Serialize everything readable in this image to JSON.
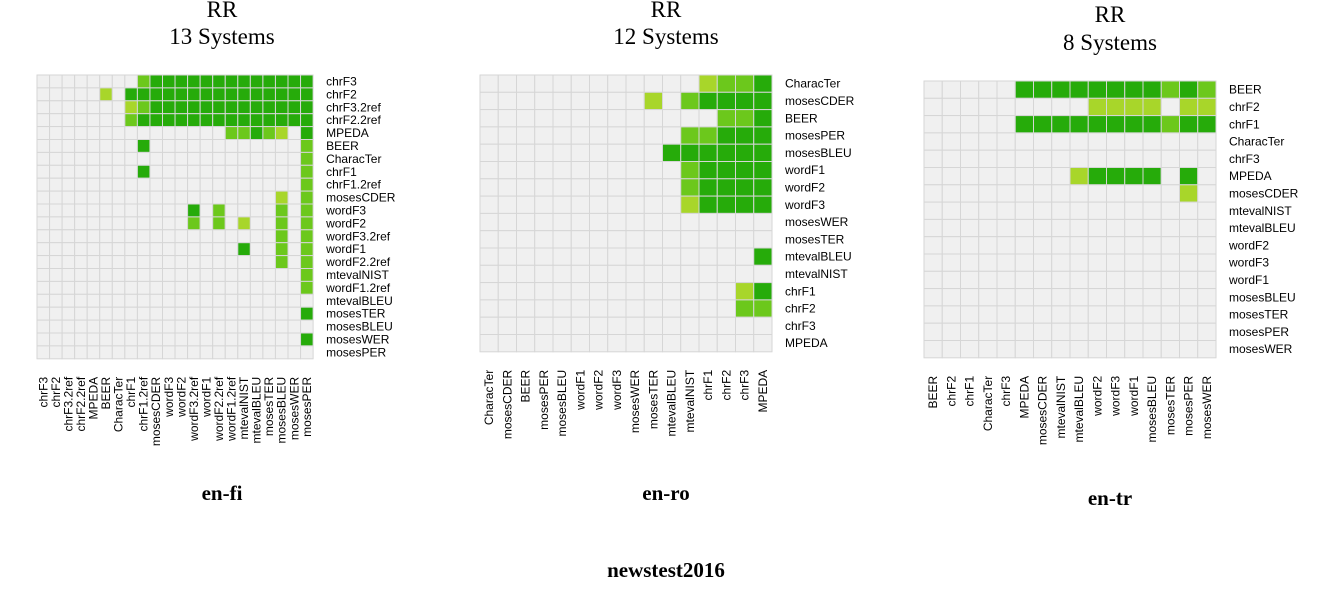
{
  "figure_caption": "newstest2016",
  "colors": {
    "empty": "#f0f0f0",
    "grid": "#d6d6d6",
    "level_1": "#a8d62a",
    "level_2": "#6cc81c",
    "level_3": "#26ab0a"
  },
  "chart_data": [
    {
      "type": "heatmap",
      "title_line1": "RR",
      "title_line2": "13 Systems",
      "subtitle": "en-fi",
      "metrics_rows": [
        "chrF3",
        "chrF2",
        "chrF3.2ref",
        "chrF2.2ref",
        "MPEDA",
        "BEER",
        "CharacTer",
        "chrF1",
        "chrF1.2ref",
        "mosesCDER",
        "wordF3",
        "wordF2",
        "wordF3.2ref",
        "wordF1",
        "wordF2.2ref",
        "mtevalNIST",
        "wordF1.2ref",
        "mtevalBLEU",
        "mosesTER",
        "mosesBLEU",
        "mosesWER",
        "mosesPER"
      ],
      "metrics_cols": [
        "chrF3",
        "chrF2",
        "chrF3.2ref",
        "chrF2.2ref",
        "MPEDA",
        "BEER",
        "CharacTer",
        "chrF1",
        "chrF1.2ref",
        "mosesCDER",
        "wordF3",
        "wordF2",
        "wordF3.2ref",
        "wordF1",
        "wordF2.2ref",
        "wordF1.2ref",
        "mtevalNIST",
        "mtevalBLEU",
        "mosesTER",
        "mosesBLEU",
        "mosesWER",
        "mosesPER"
      ],
      "cells": [
        [
          0,
          8,
          2
        ],
        [
          0,
          9,
          3
        ],
        [
          0,
          10,
          3
        ],
        [
          0,
          11,
          3
        ],
        [
          0,
          12,
          3
        ],
        [
          0,
          13,
          3
        ],
        [
          0,
          14,
          3
        ],
        [
          0,
          15,
          3
        ],
        [
          0,
          16,
          3
        ],
        [
          0,
          17,
          3
        ],
        [
          0,
          18,
          3
        ],
        [
          0,
          19,
          3
        ],
        [
          0,
          20,
          3
        ],
        [
          0,
          21,
          3
        ],
        [
          1,
          5,
          1
        ],
        [
          1,
          7,
          3
        ],
        [
          1,
          8,
          3
        ],
        [
          1,
          9,
          3
        ],
        [
          1,
          10,
          3
        ],
        [
          1,
          11,
          3
        ],
        [
          1,
          12,
          3
        ],
        [
          1,
          13,
          3
        ],
        [
          1,
          14,
          3
        ],
        [
          1,
          15,
          3
        ],
        [
          1,
          16,
          3
        ],
        [
          1,
          17,
          3
        ],
        [
          1,
          18,
          3
        ],
        [
          1,
          19,
          3
        ],
        [
          1,
          20,
          3
        ],
        [
          1,
          21,
          3
        ],
        [
          2,
          7,
          1
        ],
        [
          2,
          8,
          2
        ],
        [
          2,
          9,
          3
        ],
        [
          2,
          10,
          3
        ],
        [
          2,
          11,
          3
        ],
        [
          2,
          12,
          3
        ],
        [
          2,
          13,
          3
        ],
        [
          2,
          14,
          3
        ],
        [
          2,
          15,
          3
        ],
        [
          2,
          16,
          3
        ],
        [
          2,
          17,
          3
        ],
        [
          2,
          18,
          3
        ],
        [
          2,
          19,
          3
        ],
        [
          2,
          20,
          3
        ],
        [
          2,
          21,
          3
        ],
        [
          3,
          7,
          2
        ],
        [
          3,
          8,
          3
        ],
        [
          3,
          9,
          3
        ],
        [
          3,
          10,
          3
        ],
        [
          3,
          11,
          3
        ],
        [
          3,
          12,
          3
        ],
        [
          3,
          13,
          3
        ],
        [
          3,
          14,
          3
        ],
        [
          3,
          15,
          3
        ],
        [
          3,
          16,
          3
        ],
        [
          3,
          17,
          3
        ],
        [
          3,
          18,
          3
        ],
        [
          3,
          19,
          3
        ],
        [
          3,
          20,
          3
        ],
        [
          3,
          21,
          3
        ],
        [
          4,
          15,
          2
        ],
        [
          4,
          16,
          2
        ],
        [
          4,
          17,
          3
        ],
        [
          4,
          18,
          2
        ],
        [
          4,
          19,
          1
        ],
        [
          4,
          21,
          3
        ],
        [
          5,
          8,
          3
        ],
        [
          5,
          21,
          2
        ],
        [
          6,
          21,
          2
        ],
        [
          7,
          8,
          3
        ],
        [
          7,
          21,
          2
        ],
        [
          8,
          21,
          2
        ],
        [
          9,
          19,
          1
        ],
        [
          9,
          21,
          2
        ],
        [
          10,
          12,
          3
        ],
        [
          10,
          14,
          2
        ],
        [
          10,
          19,
          2
        ],
        [
          10,
          21,
          2
        ],
        [
          11,
          12,
          2
        ],
        [
          11,
          14,
          2
        ],
        [
          11,
          16,
          1
        ],
        [
          11,
          19,
          2
        ],
        [
          11,
          21,
          2
        ],
        [
          12,
          19,
          2
        ],
        [
          12,
          21,
          2
        ],
        [
          13,
          16,
          3
        ],
        [
          13,
          19,
          2
        ],
        [
          13,
          21,
          2
        ],
        [
          14,
          19,
          2
        ],
        [
          14,
          21,
          2
        ],
        [
          15,
          21,
          2
        ],
        [
          16,
          21,
          2
        ],
        [
          18,
          21,
          3
        ],
        [
          20,
          21,
          3
        ]
      ]
    },
    {
      "type": "heatmap",
      "title_line1": "RR",
      "title_line2": "12 Systems",
      "subtitle": "en-ro",
      "metrics_rows": [
        "CharacTer",
        "mosesCDER",
        "BEER",
        "mosesPER",
        "mosesBLEU",
        "wordF1",
        "wordF2",
        "wordF3",
        "mosesWER",
        "mosesTER",
        "mtevalBLEU",
        "mtevalNIST",
        "chrF1",
        "chrF2",
        "chrF3",
        "MPEDA"
      ],
      "metrics_cols": [
        "CharacTer",
        "mosesCDER",
        "BEER",
        "mosesPER",
        "mosesBLEU",
        "wordF1",
        "wordF2",
        "wordF3",
        "mosesWER",
        "mosesTER",
        "mtevalBLEU",
        "mtevalNIST",
        "chrF1",
        "chrF2",
        "chrF3",
        "MPEDA"
      ],
      "cells": [
        [
          0,
          12,
          1
        ],
        [
          0,
          13,
          2
        ],
        [
          0,
          14,
          2
        ],
        [
          0,
          15,
          3
        ],
        [
          1,
          9,
          1
        ],
        [
          1,
          11,
          2
        ],
        [
          1,
          12,
          3
        ],
        [
          1,
          13,
          3
        ],
        [
          1,
          14,
          3
        ],
        [
          1,
          15,
          3
        ],
        [
          2,
          13,
          2
        ],
        [
          2,
          14,
          2
        ],
        [
          2,
          15,
          3
        ],
        [
          3,
          11,
          2
        ],
        [
          3,
          12,
          2
        ],
        [
          3,
          13,
          3
        ],
        [
          3,
          14,
          3
        ],
        [
          3,
          15,
          3
        ],
        [
          4,
          10,
          3
        ],
        [
          4,
          11,
          3
        ],
        [
          4,
          12,
          3
        ],
        [
          4,
          13,
          3
        ],
        [
          4,
          14,
          3
        ],
        [
          4,
          15,
          3
        ],
        [
          5,
          11,
          2
        ],
        [
          5,
          12,
          3
        ],
        [
          5,
          13,
          3
        ],
        [
          5,
          14,
          3
        ],
        [
          5,
          15,
          3
        ],
        [
          6,
          11,
          2
        ],
        [
          6,
          12,
          3
        ],
        [
          6,
          13,
          3
        ],
        [
          6,
          14,
          3
        ],
        [
          6,
          15,
          3
        ],
        [
          7,
          11,
          1
        ],
        [
          7,
          12,
          3
        ],
        [
          7,
          13,
          3
        ],
        [
          7,
          14,
          3
        ],
        [
          7,
          15,
          3
        ],
        [
          10,
          15,
          3
        ],
        [
          12,
          14,
          1
        ],
        [
          12,
          15,
          3
        ],
        [
          13,
          14,
          2
        ],
        [
          13,
          15,
          2
        ]
      ]
    },
    {
      "type": "heatmap",
      "title_line1": "RR",
      "title_line2": "8 Systems",
      "subtitle": "en-tr",
      "metrics_rows": [
        "BEER",
        "chrF2",
        "chrF1",
        "CharacTer",
        "chrF3",
        "MPEDA",
        "mosesCDER",
        "mtevalNIST",
        "mtevalBLEU",
        "wordF2",
        "wordF3",
        "wordF1",
        "mosesBLEU",
        "mosesTER",
        "mosesPER",
        "mosesWER"
      ],
      "metrics_cols": [
        "BEER",
        "chrF2",
        "chrF1",
        "CharacTer",
        "chrF3",
        "MPEDA",
        "mosesCDER",
        "mtevalNIST",
        "mtevalBLEU",
        "wordF2",
        "wordF3",
        "wordF1",
        "mosesBLEU",
        "mosesTER",
        "mosesPER",
        "mosesWER"
      ],
      "cells": [
        [
          0,
          5,
          3
        ],
        [
          0,
          6,
          3
        ],
        [
          0,
          7,
          3
        ],
        [
          0,
          8,
          3
        ],
        [
          0,
          9,
          3
        ],
        [
          0,
          10,
          3
        ],
        [
          0,
          11,
          3
        ],
        [
          0,
          12,
          3
        ],
        [
          0,
          13,
          2
        ],
        [
          0,
          14,
          3
        ],
        [
          0,
          15,
          2
        ],
        [
          1,
          9,
          1
        ],
        [
          1,
          10,
          1
        ],
        [
          1,
          11,
          1
        ],
        [
          1,
          12,
          1
        ],
        [
          1,
          14,
          1
        ],
        [
          1,
          15,
          1
        ],
        [
          2,
          5,
          3
        ],
        [
          2,
          6,
          3
        ],
        [
          2,
          7,
          3
        ],
        [
          2,
          8,
          3
        ],
        [
          2,
          9,
          3
        ],
        [
          2,
          10,
          3
        ],
        [
          2,
          11,
          3
        ],
        [
          2,
          12,
          3
        ],
        [
          2,
          13,
          2
        ],
        [
          2,
          14,
          3
        ],
        [
          2,
          15,
          3
        ],
        [
          5,
          8,
          1
        ],
        [
          5,
          9,
          3
        ],
        [
          5,
          10,
          3
        ],
        [
          5,
          11,
          3
        ],
        [
          5,
          12,
          3
        ],
        [
          5,
          14,
          3
        ],
        [
          6,
          14,
          1
        ]
      ]
    }
  ]
}
